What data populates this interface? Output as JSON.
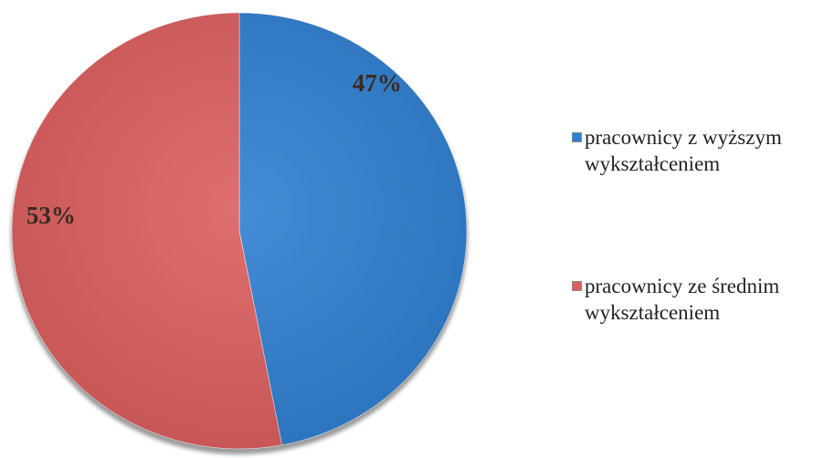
{
  "chart_data": {
    "type": "pie",
    "title": "",
    "slices": [
      {
        "label": "pracownicy z wyższym wykształceniem",
        "label_line1": "pracownicy z wyższym",
        "label_line2": "wykształceniem",
        "value": 47,
        "display": "47%",
        "color": "#2f7fd0"
      },
      {
        "label": "pracownicy ze średnim wykształceniem",
        "label_line1": "pracownicy ze średnim",
        "label_line2": "wykształceniem",
        "value": 53,
        "display": "53%",
        "color": "#dc5e5e"
      }
    ],
    "start_angle_deg": 0,
    "direction": "clockwise",
    "legend_position": "right"
  }
}
